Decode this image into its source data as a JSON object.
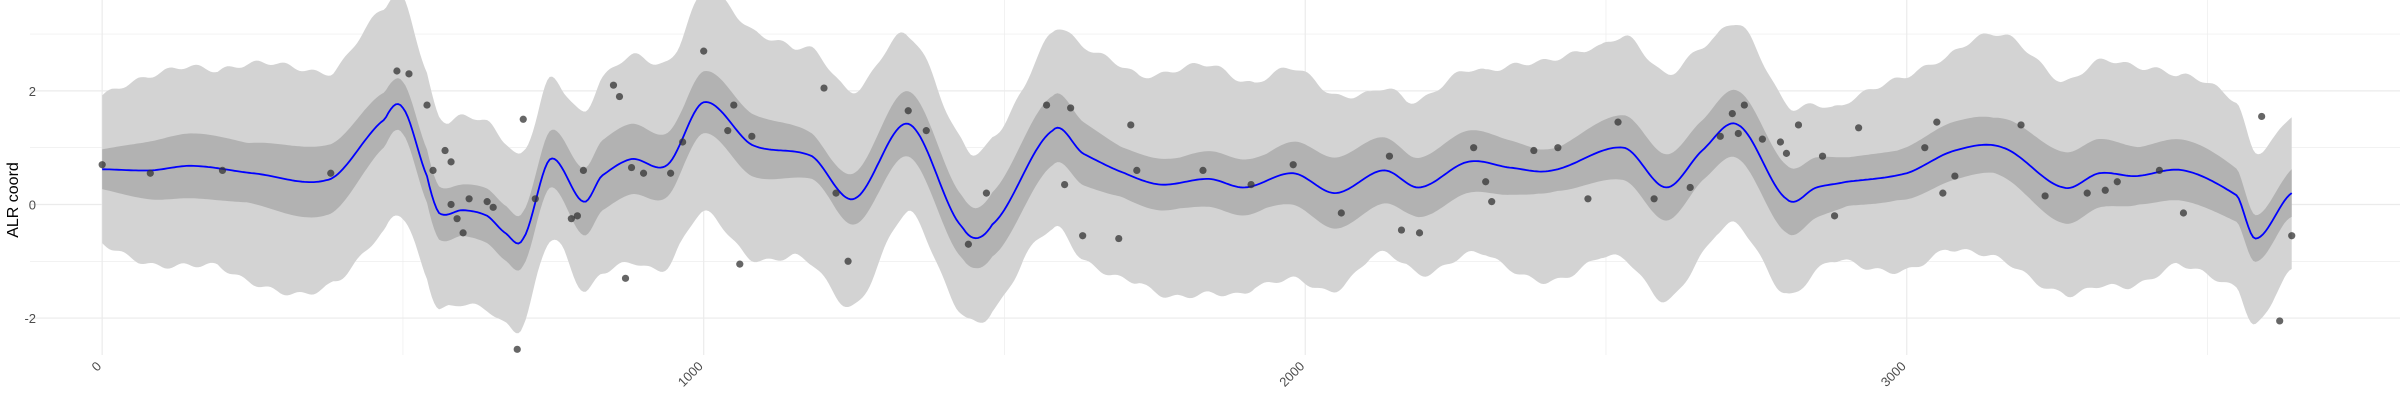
{
  "chart_data": {
    "type": "line",
    "ylabel": "ALR coord",
    "xlim": [
      -120,
      3820
    ],
    "ylim": [
      -2.65,
      3.6
    ],
    "x_ticks": [
      0,
      1000,
      2000,
      3000
    ],
    "x_tick_labels": [
      "0",
      "1000",
      "2000",
      "3000"
    ],
    "y_ticks": [
      -2,
      0,
      2
    ],
    "y_tick_labels": [
      "-2",
      "0",
      "2"
    ],
    "grid": true,
    "colors": {
      "mean_line": "#0000ff",
      "inner_band": "#b2b2b2",
      "outer_band": "#d3d3d3",
      "points": "#333333",
      "grid": "#ebebeb"
    },
    "series": [
      {
        "values_x": [
          0,
          80,
          150,
          250,
          380,
          470,
          500,
          540,
          560,
          600,
          640,
          670,
          700,
          745,
          800,
          830,
          880,
          940,
          1000,
          1080,
          1180,
          1250,
          1340,
          1430,
          1480,
          1580,
          1630,
          1700,
          1760,
          1840,
          1900,
          1980,
          2050,
          2130,
          2190,
          2270,
          2340,
          2410,
          2530,
          2600,
          2660,
          2720,
          2800,
          2850,
          2900,
          3000,
          3080,
          3160,
          3260,
          3320,
          3380,
          3460,
          3550,
          3580,
          3640
        ],
        "values_y": [
          0.62,
          0.6,
          0.68,
          0.55,
          0.45,
          1.5,
          1.7,
          0.5,
          -0.15,
          -0.1,
          -0.2,
          -0.5,
          -0.6,
          0.8,
          0.05,
          0.5,
          0.8,
          0.7,
          1.8,
          1.05,
          0.85,
          0.1,
          1.42,
          -0.4,
          -0.35,
          1.3,
          0.9,
          0.55,
          0.35,
          0.45,
          0.3,
          0.55,
          0.2,
          0.6,
          0.3,
          0.75,
          0.65,
          0.6,
          1.0,
          0.3,
          0.95,
          1.4,
          0.1,
          0.3,
          0.4,
          0.55,
          0.95,
          1.0,
          0.3,
          0.55,
          0.5,
          0.6,
          0.15,
          -0.6,
          0.2
        ]
      }
    ],
    "points": {
      "x": [
        0,
        80,
        200,
        380,
        490,
        510,
        540,
        550,
        570,
        580,
        580,
        590,
        600,
        610,
        640,
        650,
        690,
        700,
        720,
        780,
        790,
        800,
        850,
        860,
        870,
        880,
        900,
        945,
        965,
        1000,
        1040,
        1050,
        1060,
        1080,
        1200,
        1220,
        1240,
        1340,
        1370,
        1440,
        1470,
        1570,
        1600,
        1610,
        1630,
        1690,
        1710,
        1720,
        1830,
        1910,
        1980,
        2060,
        2140,
        2160,
        2190,
        2280,
        2300,
        2310,
        2380,
        2420,
        2470,
        2520,
        2580,
        2640,
        2690,
        2710,
        2720,
        2730,
        2760,
        2790,
        2800,
        2820,
        2860,
        2880,
        2920,
        3030,
        3050,
        3060,
        3080,
        3190,
        3230,
        3300,
        3330,
        3350,
        3420,
        3460,
        3590,
        3620,
        3640
      ],
      "y": [
        0.7,
        0.55,
        0.6,
        0.55,
        2.35,
        2.3,
        1.75,
        0.6,
        0.95,
        0.0,
        0.75,
        -0.25,
        -0.5,
        0.1,
        0.05,
        -0.05,
        -2.55,
        1.5,
        0.1,
        -0.25,
        -0.2,
        0.6,
        2.1,
        1.9,
        -1.3,
        0.65,
        0.55,
        0.55,
        1.1,
        2.7,
        1.3,
        1.75,
        -1.05,
        1.2,
        2.05,
        0.2,
        -1.0,
        1.65,
        1.3,
        -0.7,
        0.2,
        1.75,
        0.35,
        1.7,
        -0.55,
        -0.6,
        1.4,
        0.6,
        0.6,
        0.35,
        0.7,
        -0.15,
        0.85,
        -0.45,
        -0.5,
        1.0,
        0.4,
        0.05,
        0.95,
        1.0,
        0.1,
        1.45,
        0.1,
        0.3,
        1.2,
        1.6,
        1.25,
        1.75,
        1.15,
        1.1,
        0.9,
        1.4,
        0.85,
        -0.2,
        1.35,
        1.0,
        1.45,
        0.2,
        0.5,
        1.4,
        0.15,
        0.2,
        0.25,
        0.4,
        0.6,
        -0.15,
        1.55,
        -2.05,
        -0.55
      ]
    }
  }
}
